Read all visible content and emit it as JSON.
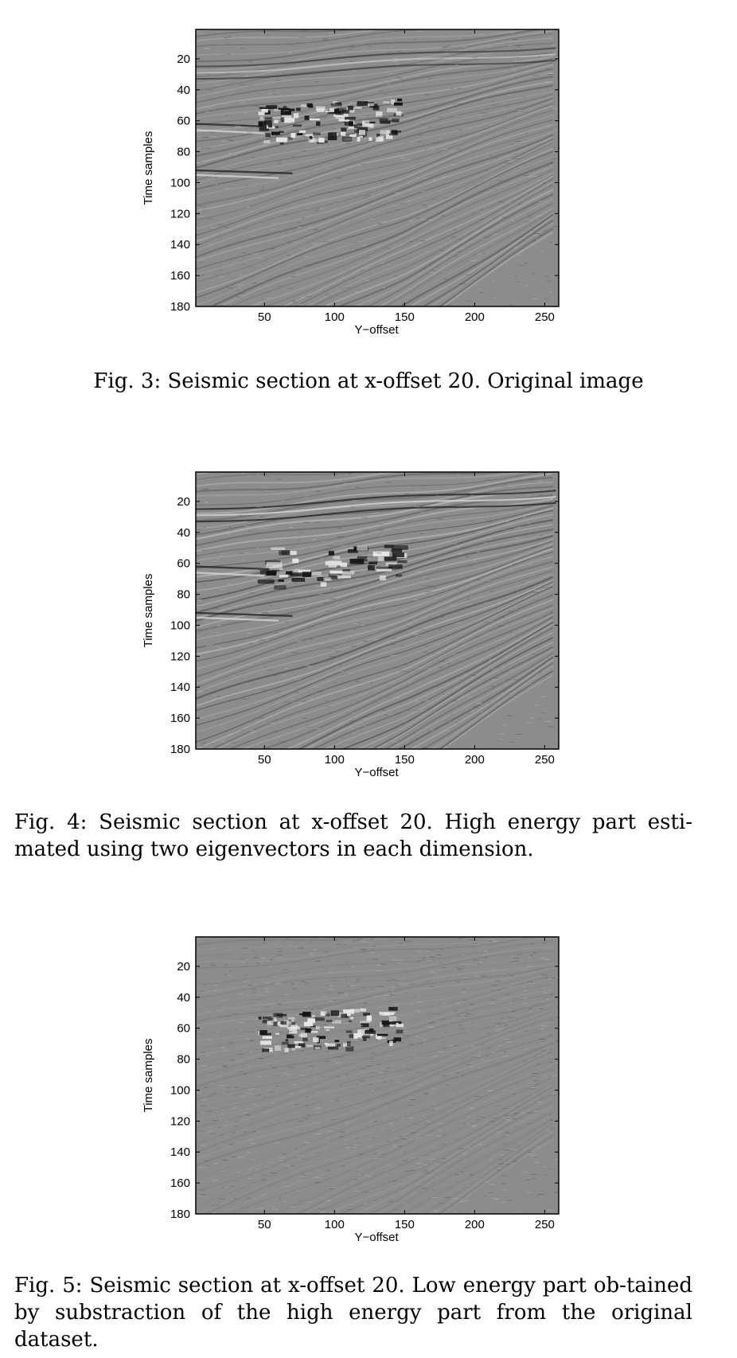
{
  "figures": [
    {
      "id": "fig3",
      "caption": "Fig. 3: Seismic section at x-offset 20. Original image",
      "ylabel": "Time samples",
      "xlabel": "Y−offset",
      "yticks": [
        "20",
        "40",
        "60",
        "80",
        "100",
        "120",
        "140",
        "160",
        "180"
      ],
      "xticks": [
        "50",
        "100",
        "150",
        "200",
        "250"
      ],
      "variant": "original"
    },
    {
      "id": "fig4",
      "caption": "Fig. 4: Seismic section at x-offset 20. High energy part esti-mated using two eigenvectors in each dimension.",
      "ylabel": "Time samples",
      "xlabel": "Y−offset",
      "yticks": [
        "20",
        "40",
        "60",
        "80",
        "100",
        "120",
        "140",
        "160",
        "180"
      ],
      "xticks": [
        "50",
        "100",
        "150",
        "200",
        "250"
      ],
      "variant": "high-energy"
    },
    {
      "id": "fig5",
      "caption": "Fig. 5: Seismic section at x-offset 20. Low energy part ob-tained by substraction of the high energy part from the original dataset.",
      "ylabel": "Time samples",
      "xlabel": "Y−offset",
      "yticks": [
        "20",
        "40",
        "60",
        "80",
        "100",
        "120",
        "140",
        "160",
        "180"
      ],
      "xticks": [
        "50",
        "100",
        "150",
        "200",
        "250"
      ],
      "variant": "low-energy"
    }
  ],
  "colors": {
    "image_background": "#8c8c8c",
    "reflector_dark": "#3a3a3a",
    "reflector_light": "#c8c8c8"
  }
}
